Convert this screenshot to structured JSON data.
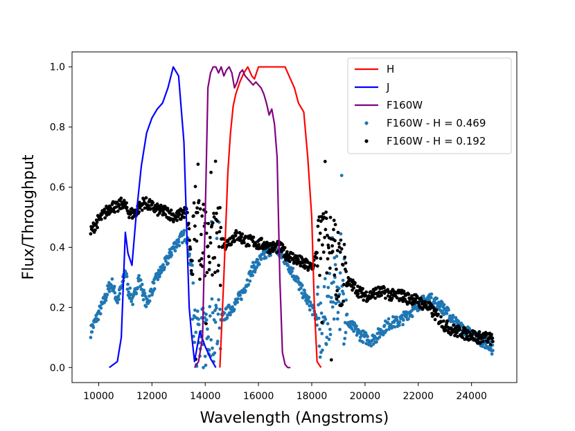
{
  "chart_data": {
    "type": "line",
    "xlabel": "Wavelength (Angstroms)",
    "ylabel": "Flux/Throughput",
    "xlim": [
      9000,
      25700
    ],
    "ylim": [
      -0.05,
      1.05
    ],
    "xticks": [
      10000,
      12000,
      14000,
      16000,
      18000,
      20000,
      22000,
      24000
    ],
    "yticks": [
      0.0,
      0.2,
      0.4,
      0.6,
      0.8,
      1.0
    ],
    "grid": false,
    "legend_position": "top-right",
    "colors": {
      "H": "#ff0000",
      "J": "#0000ff",
      "F160W": "#800080",
      "scatter_blue": "#1f77b4",
      "scatter_black": "#000000"
    },
    "series": [
      {
        "name": "H",
        "kind": "line",
        "color": "#ff0000",
        "x": [
          14550,
          14700,
          14850,
          14950,
          15050,
          15150,
          15300,
          15450,
          15600,
          15750,
          15850,
          16000,
          16500,
          17000,
          17200,
          17350,
          17500,
          17700,
          17850,
          18000,
          18100,
          18200,
          18350
        ],
        "y": [
          0.0,
          0.3,
          0.65,
          0.78,
          0.87,
          0.91,
          0.95,
          0.98,
          1.0,
          0.97,
          0.96,
          1.0,
          1.0,
          1.0,
          0.96,
          0.93,
          0.88,
          0.85,
          0.7,
          0.5,
          0.2,
          0.02,
          0.0
        ]
      },
      {
        "name": "J",
        "kind": "line",
        "color": "#0000ff",
        "x": [
          10400,
          10700,
          10850,
          11000,
          11100,
          11250,
          11400,
          11600,
          11800,
          12000,
          12200,
          12400,
          12600,
          12800,
          13000,
          13200,
          13400,
          13500,
          13600,
          13800,
          14000,
          14200,
          14400
        ],
        "y": [
          0.0,
          0.02,
          0.1,
          0.45,
          0.38,
          0.34,
          0.5,
          0.67,
          0.78,
          0.83,
          0.86,
          0.88,
          0.93,
          1.0,
          0.97,
          0.75,
          0.2,
          0.1,
          0.02,
          0.12,
          0.07,
          0.03,
          0.0
        ]
      },
      {
        "name": "F160W",
        "kind": "line",
        "color": "#800080",
        "x": [
          13600,
          13750,
          13900,
          14000,
          14100,
          14200,
          14300,
          14400,
          14500,
          14600,
          14700,
          14800,
          14900,
          15000,
          15100,
          15200,
          15300,
          15400,
          15500,
          15600,
          15700,
          15800,
          15900,
          16000,
          16100,
          16200,
          16300,
          16400,
          16500,
          16600,
          16700,
          16800,
          16900,
          17000,
          17100,
          17200
        ],
        "y": [
          0.0,
          0.02,
          0.1,
          0.5,
          0.93,
          0.98,
          1.0,
          1.0,
          0.98,
          1.0,
          0.97,
          0.99,
          1.0,
          0.98,
          0.93,
          0.95,
          0.98,
          0.99,
          0.97,
          0.96,
          0.95,
          0.94,
          0.95,
          0.94,
          0.93,
          0.91,
          0.88,
          0.84,
          0.86,
          0.81,
          0.7,
          0.3,
          0.05,
          0.01,
          0.0,
          0.0
        ]
      },
      {
        "name": "F160W - H = 0.469",
        "kind": "scatter",
        "color": "#1f77b4",
        "envelope": {
          "x": [
            9700,
            9800,
            10000,
            10200,
            10400,
            10500,
            10700,
            10900,
            11000,
            11100,
            11300,
            11500,
            11700,
            11800,
            12000,
            12200,
            12400,
            12600,
            12800,
            13000,
            13200,
            13300,
            13400,
            13500,
            13550,
            13600,
            13700,
            13800,
            13900,
            14000,
            14200,
            14400,
            14600,
            14800,
            15000,
            15200,
            15400,
            15600,
            15800,
            16000,
            16200,
            16400,
            16600,
            16800,
            17000,
            17200,
            17400,
            17600,
            17800,
            18000,
            18200,
            18300,
            18400,
            18600,
            18800,
            19000,
            19200,
            19400,
            19600,
            19800,
            20000,
            20200,
            20400,
            20600,
            20800,
            21000,
            21200,
            21400,
            21600,
            21800,
            22000,
            22200,
            22400,
            22600,
            22800,
            23000,
            23200,
            23400,
            23600,
            23800,
            24000,
            24200,
            24400,
            24600,
            24800
          ],
          "y": [
            0.12,
            0.14,
            0.18,
            0.22,
            0.27,
            0.28,
            0.22,
            0.28,
            0.33,
            0.26,
            0.22,
            0.3,
            0.24,
            0.21,
            0.26,
            0.3,
            0.33,
            0.36,
            0.4,
            0.42,
            0.44,
            0.44,
            0.38,
            0.3,
            0.2,
            0.15,
            0.09,
            0.06,
            0.08,
            0.1,
            0.13,
            0.14,
            0.16,
            0.18,
            0.2,
            0.22,
            0.25,
            0.29,
            0.33,
            0.35,
            0.37,
            0.39,
            0.4,
            0.38,
            0.36,
            0.33,
            0.3,
            0.26,
            0.23,
            0.2,
            0.16,
            0.14,
            0.16,
            0.2,
            0.24,
            0.26,
            0.2,
            0.14,
            0.13,
            0.11,
            0.1,
            0.09,
            0.1,
            0.12,
            0.14,
            0.15,
            0.15,
            0.16,
            0.18,
            0.19,
            0.21,
            0.22,
            0.23,
            0.22,
            0.21,
            0.19,
            0.17,
            0.15,
            0.13,
            0.12,
            0.11,
            0.1,
            0.09,
            0.08,
            0.06
          ]
        }
      },
      {
        "name": "F160W - H = 0.192",
        "kind": "scatter",
        "color": "#000000",
        "envelope": {
          "x": [
            9700,
            9900,
            10100,
            10300,
            10500,
            10700,
            10900,
            11100,
            11300,
            11500,
            11700,
            11900,
            12100,
            12300,
            12500,
            12700,
            12900,
            13100,
            13300,
            13400,
            13500,
            13600,
            13700,
            13800,
            13900,
            14000,
            14200,
            14400,
            14600,
            14800,
            15000,
            15200,
            15400,
            15600,
            15800,
            16000,
            16200,
            16400,
            16600,
            16800,
            17000,
            17200,
            17400,
            17600,
            17800,
            18000,
            18200,
            18400,
            18600,
            18800,
            19000,
            19200,
            19400,
            19600,
            19800,
            20000,
            20200,
            20400,
            20600,
            20800,
            21000,
            21200,
            21400,
            21600,
            21800,
            22000,
            22200,
            22400,
            22600,
            22800,
            23000,
            23200,
            23400,
            23600,
            23800,
            24000,
            24200,
            24400,
            24600,
            24800
          ],
          "y": [
            0.45,
            0.48,
            0.5,
            0.52,
            0.54,
            0.53,
            0.55,
            0.52,
            0.51,
            0.53,
            0.55,
            0.54,
            0.53,
            0.52,
            0.52,
            0.51,
            0.5,
            0.51,
            0.52,
            0.45,
            0.3,
            0.5,
            0.55,
            0.4,
            0.45,
            0.42,
            0.4,
            0.41,
            0.42,
            0.41,
            0.43,
            0.44,
            0.43,
            0.42,
            0.42,
            0.41,
            0.41,
            0.4,
            0.4,
            0.4,
            0.38,
            0.37,
            0.36,
            0.35,
            0.34,
            0.33,
            0.38,
            0.42,
            0.4,
            0.38,
            0.33,
            0.3,
            0.28,
            0.27,
            0.25,
            0.24,
            0.24,
            0.25,
            0.25,
            0.25,
            0.24,
            0.24,
            0.24,
            0.23,
            0.23,
            0.22,
            0.21,
            0.2,
            0.18,
            0.16,
            0.14,
            0.13,
            0.12,
            0.12,
            0.11,
            0.11,
            0.1,
            0.1,
            0.1,
            0.09
          ]
        }
      }
    ],
    "legend": [
      {
        "label": "H",
        "kind": "line",
        "color": "#ff0000"
      },
      {
        "label": "J",
        "kind": "line",
        "color": "#0000ff"
      },
      {
        "label": "F160W",
        "kind": "line",
        "color": "#800080"
      },
      {
        "label": "F160W - H = 0.469",
        "kind": "scatter",
        "color": "#1f77b4"
      },
      {
        "label": "F160W - H = 0.192",
        "kind": "scatter",
        "color": "#000000"
      }
    ]
  }
}
